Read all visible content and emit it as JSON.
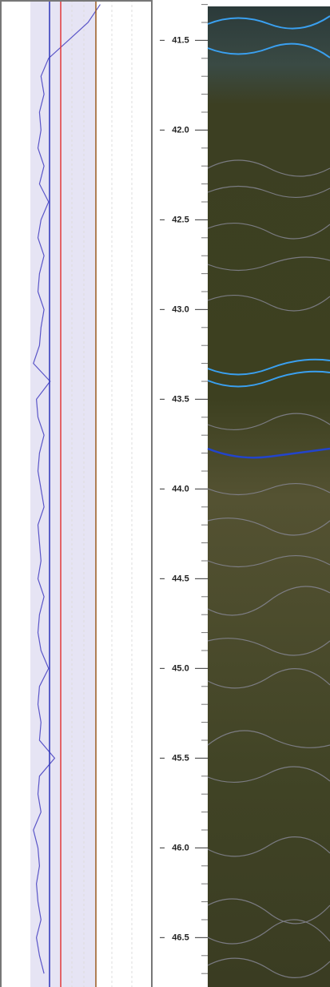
{
  "chart_data": {
    "type": "line",
    "orientation": "vertical",
    "x": [
      41.3,
      41.4,
      41.5,
      41.6,
      41.7,
      41.8,
      41.9,
      42.0,
      42.1,
      42.2,
      42.3,
      42.4,
      42.5,
      42.6,
      42.7,
      42.8,
      42.9,
      43.0,
      43.1,
      43.2,
      43.3,
      43.4,
      43.5,
      43.6,
      43.7,
      43.8,
      43.9,
      44.0,
      44.1,
      44.2,
      44.3,
      44.4,
      44.5,
      44.6,
      44.7,
      44.8,
      44.9,
      45.0,
      45.1,
      45.2,
      45.3,
      45.4,
      45.5,
      45.6,
      45.7,
      45.8,
      45.9,
      46.0,
      46.1,
      46.2,
      46.3,
      46.4,
      46.5,
      46.6,
      46.7
    ],
    "series": [
      {
        "color": "#5a55c8",
        "values": [
          66,
          58,
          45,
          32,
          27,
          29,
          26,
          27,
          25,
          29,
          26,
          32,
          27,
          25,
          29,
          26,
          25,
          29,
          27,
          26,
          22,
          33,
          24,
          25,
          29,
          26,
          25,
          27,
          29,
          25,
          26,
          27,
          25,
          29,
          26,
          25,
          27,
          32,
          26,
          25,
          27,
          26,
          36,
          26,
          25,
          27,
          22,
          25,
          26,
          24,
          25,
          27,
          24,
          26,
          29
        ]
      }
    ],
    "xlim": [
      0,
      100
    ],
    "ylim": [
      41.275,
      46.775
    ],
    "yticks": [
      41.5,
      {
        "value": 42,
        "label": "42.0"
      },
      42.5,
      {
        "value": 43,
        "label": "43.0"
      },
      43.5,
      {
        "value": 44,
        "label": "44.0"
      },
      44.5,
      {
        "value": 45,
        "label": "45.0"
      },
      45.5,
      {
        "value": 46,
        "label": "46.0"
      },
      46.5
    ],
    "minor_yticks": [
      41.3,
      41.4,
      41.6,
      41.7,
      41.8,
      41.9,
      42.1,
      42.2,
      42.3,
      42.4,
      42.6,
      42.7,
      42.8,
      42.9,
      43.1,
      43.2,
      43.3,
      43.4,
      43.6,
      43.7,
      43.8,
      43.9,
      44.1,
      44.2,
      44.3,
      44.4,
      44.6,
      44.7,
      44.8,
      44.9,
      45.1,
      45.2,
      45.3,
      45.4,
      45.6,
      45.7,
      45.8,
      45.9,
      46.1,
      46.2,
      46.3,
      46.4,
      46.6,
      46.7
    ]
  }
}
